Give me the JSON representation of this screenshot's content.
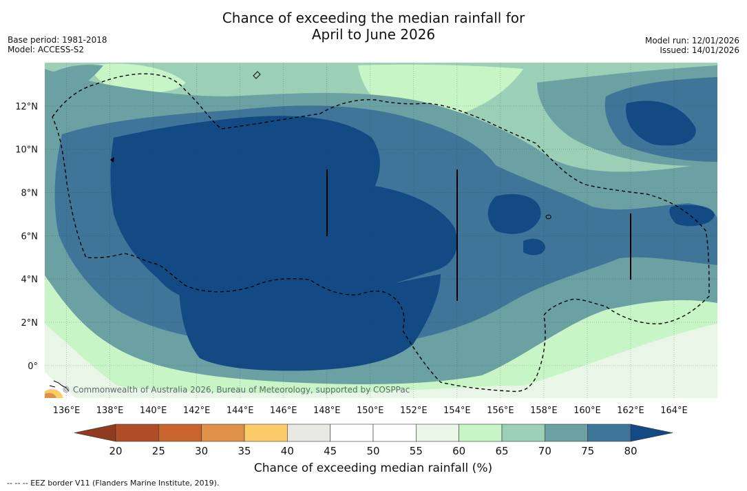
{
  "title": {
    "line1": "Chance of exceeding the median rainfall for",
    "line2": "April to June 2026"
  },
  "meta_left": {
    "base_period": "Base period: 1981-2018",
    "model": "Model: ACCESS-S2"
  },
  "meta_right": {
    "model_run": "Model run: 12/01/2026",
    "issued": "Issued: 14/01/2026"
  },
  "map": {
    "lon_range": [
      135,
      166
    ],
    "lat_range": [
      -1.5,
      14
    ],
    "lon_ticks": [
      {
        "value": 136,
        "label": "136°E"
      },
      {
        "value": 138,
        "label": "138°E"
      },
      {
        "value": 140,
        "label": "140°E"
      },
      {
        "value": 142,
        "label": "142°E"
      },
      {
        "value": 144,
        "label": "144°E"
      },
      {
        "value": 146,
        "label": "146°E"
      },
      {
        "value": 148,
        "label": "148°E"
      },
      {
        "value": 150,
        "label": "150°E"
      },
      {
        "value": 152,
        "label": "152°E"
      },
      {
        "value": 154,
        "label": "154°E"
      },
      {
        "value": 156,
        "label": "156°E"
      },
      {
        "value": 158,
        "label": "158°E"
      },
      {
        "value": 160,
        "label": "160°E"
      },
      {
        "value": 162,
        "label": "162°E"
      },
      {
        "value": 164,
        "label": "164°E"
      }
    ],
    "lat_ticks": [
      {
        "value": 12,
        "label": "12°N"
      },
      {
        "value": 10,
        "label": "10°N"
      },
      {
        "value": 8,
        "label": "8°N"
      },
      {
        "value": 6,
        "label": "6°N"
      },
      {
        "value": 4,
        "label": "4°N"
      },
      {
        "value": 2,
        "label": "2°N"
      },
      {
        "value": 0,
        "label": "0°"
      }
    ],
    "copyright": "© Commonwealth of Australia 2026, Bureau of Meteorology, supported by COSPPac"
  },
  "colorbar": {
    "label": "Chance of exceeding median rainfall (%)",
    "ticks": [
      "20",
      "25",
      "30",
      "35",
      "40",
      "45",
      "50",
      "55",
      "60",
      "65",
      "70",
      "75",
      "80"
    ],
    "under_color": "#8e3b20",
    "over_color": "#144a84",
    "colors": [
      "#b14c28",
      "#c8652f",
      "#df9148",
      "#fbcb68",
      "#e9e9e4",
      "#ffffff",
      "#ffffff",
      "#e9f5e6",
      "#c7f5c5",
      "#9bcfb6",
      "#6ba1a3",
      "#3f7598"
    ]
  },
  "footnote": "--  --  -- EEZ border V11 (Flanders Marine Institute, 2019)."
}
